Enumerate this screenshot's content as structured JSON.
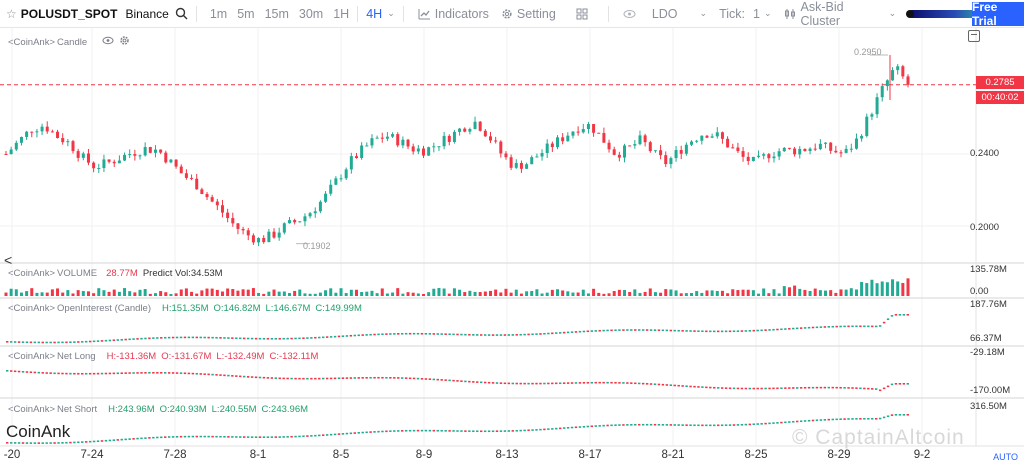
{
  "toolbar": {
    "symbol": "POLUSDT_SPOT",
    "exchange": "Binance",
    "timeframes": [
      "1m",
      "5m",
      "15m",
      "30m",
      "1H",
      "4H"
    ],
    "active_timeframe": "4H",
    "indicators_label": "Indicators",
    "setting_label": "Setting",
    "ldo_label": "LDO",
    "tick_label": "Tick:",
    "tick_value": "1",
    "cluster_label": "Ask-Bid Cluster",
    "free_trial_label": "Free Trial",
    "accent_color": "#2962ff"
  },
  "panes": {
    "candle": {
      "source": "<CoinAnk>",
      "title": "Candle"
    },
    "volume": {
      "source": "<CoinAnk>",
      "title": "VOLUME",
      "value": "28.77M",
      "predict": "Predict Vol:34.53M"
    },
    "open_interest": {
      "source": "<CoinAnk>",
      "title": "OpenInterest (Candle)",
      "h": "H:151.35M",
      "o": "O:146.82M",
      "l": "L:146.67M",
      "c": "C:149.99M"
    },
    "net_long": {
      "source": "<CoinAnk>",
      "title": "Net Long",
      "h": "H:-131.36M",
      "o": "O:-131.67M",
      "l": "L:-132.49M",
      "c": "C:-132.11M"
    },
    "net_short": {
      "source": "<CoinAnk>",
      "title": "Net Short",
      "h": "H:243.96M",
      "o": "O:240.93M",
      "l": "L:240.55M",
      "c": "C:243.96M"
    }
  },
  "price_axis": {
    "current_price": "0.2785",
    "countdown": "00:40:02",
    "labels": [
      "0.2400",
      "0.2000"
    ],
    "high_marker": "0.2950",
    "low_marker": "0.1902"
  },
  "volume_axis": [
    "135.78M",
    "0.00"
  ],
  "oi_axis": [
    "187.76M",
    "66.37M"
  ],
  "net_long_axis": [
    "-29.18M",
    "-170.00M"
  ],
  "net_short_axis": [
    "316.50M"
  ],
  "x_axis": [
    "-20",
    "7-24",
    "7-28",
    "8-1",
    "8-5",
    "8-9",
    "8-13",
    "8-17",
    "8-21",
    "8-25",
    "8-29",
    "9-2"
  ],
  "auto_label": "AUTO",
  "watermark": "CoinAnk",
  "watermark_right": "© CaptainAltcoin",
  "colors": {
    "up": "#22ab94",
    "down": "#f23645",
    "current_line": "#f23645"
  },
  "chart_data": {
    "type": "candlestick",
    "interval": "4H",
    "current_price": 0.2785,
    "high": 0.295,
    "low": 0.1902,
    "close_trend": [
      0.24,
      0.247,
      0.254,
      0.256,
      0.25,
      0.246,
      0.238,
      0.233,
      0.235,
      0.238,
      0.241,
      0.243,
      0.242,
      0.235,
      0.228,
      0.223,
      0.215,
      0.208,
      0.2,
      0.195,
      0.192,
      0.195,
      0.2,
      0.203,
      0.208,
      0.215,
      0.225,
      0.235,
      0.242,
      0.248,
      0.25,
      0.247,
      0.243,
      0.242,
      0.246,
      0.25,
      0.255,
      0.258,
      0.25,
      0.24,
      0.233,
      0.235,
      0.24,
      0.245,
      0.25,
      0.255,
      0.256,
      0.248,
      0.24,
      0.243,
      0.248,
      0.24,
      0.235,
      0.242,
      0.248,
      0.252,
      0.25,
      0.244,
      0.238,
      0.235,
      0.24,
      0.242,
      0.242,
      0.243,
      0.245,
      0.242,
      0.24,
      0.248,
      0.262,
      0.276,
      0.288,
      0.2785
    ]
  }
}
